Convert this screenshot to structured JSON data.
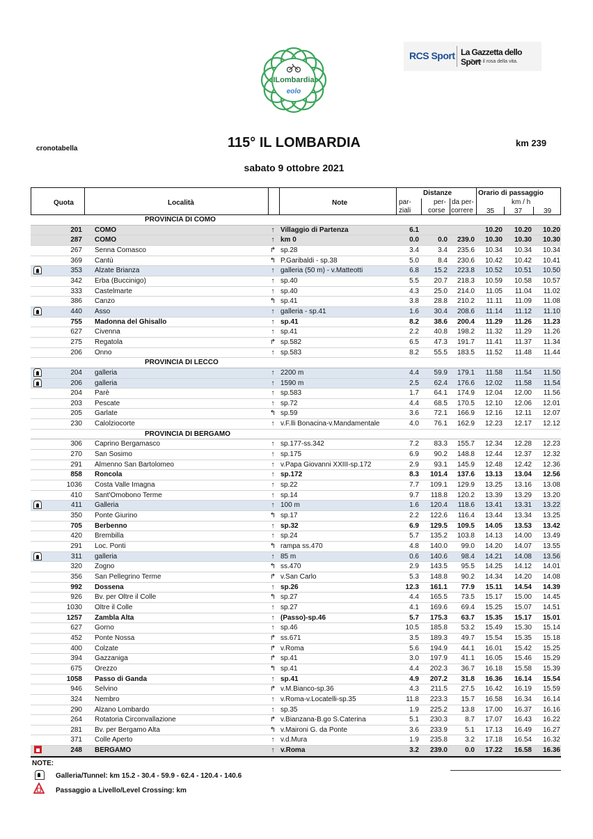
{
  "header": {
    "doc_type": "cronotabella",
    "title": "115° IL LOMBARDIA",
    "distance": "km 239",
    "date": "sabato 9 ottobre 2021",
    "logos": {
      "race": "Il Lombardia presented by eolo",
      "sponsor_left": "RCS Sport",
      "sponsor_right": "La Gazzetta dello Sport",
      "sponsor_tagline": "Tutto il rosa della vita."
    }
  },
  "colors": {
    "grey_row": "#e0e0e0",
    "tunnel_row": "#dde6f0",
    "logo_green": "#3aa55a",
    "rcs_blue": "#1d4f91",
    "finish_red": "#d0202a"
  },
  "columns": {
    "quota": "Quota",
    "localita": "Località",
    "note": "Note",
    "distanze": "Distanze",
    "parziali_1": "par-",
    "parziali_2": "ziali",
    "percorse_1": "per-",
    "percorse_2": "corse",
    "dapercorrere_1": "da per-",
    "dapercorrere_2": "correre",
    "orario": "Orario di passaggio",
    "kmh": "km / h",
    "speeds": [
      "35",
      "37",
      "39"
    ]
  },
  "rows": [
    {
      "type": "province",
      "name": "PROVINCIA DI COMO"
    },
    {
      "style": "grey",
      "quota": "201",
      "loc": "COMO",
      "dir": "straight",
      "note": "Villaggio di Partenza",
      "parz": "6.1",
      "perc": "",
      "dap": "",
      "t": [
        "10.20",
        "10.20",
        "10.20"
      ]
    },
    {
      "style": "grey",
      "quota": "287",
      "loc": "COMO",
      "dir": "straight",
      "note": "km 0",
      "parz": "0.0",
      "perc": "0.0",
      "dap": "239.0",
      "t": [
        "10.30",
        "10.30",
        "10.30"
      ]
    },
    {
      "quota": "267",
      "loc": "Senna Comasco",
      "dir": "right",
      "note": "sp.28",
      "parz": "3.4",
      "perc": "3.4",
      "dap": "235.6",
      "t": [
        "10.34",
        "10.34",
        "10.34"
      ]
    },
    {
      "quota": "369",
      "loc": "Cantù",
      "dir": "left",
      "note": "P.Garibaldi - sp.38",
      "parz": "5.0",
      "perc": "8.4",
      "dap": "230.6",
      "t": [
        "10.42",
        "10.42",
        "10.41"
      ]
    },
    {
      "style": "blue",
      "icon": "tunnel",
      "quota": "353",
      "loc": "Alzate Brianza",
      "dir": "straight",
      "note": "galleria (50 m) - v.Matteotti",
      "parz": "6.8",
      "perc": "15.2",
      "dap": "223.8",
      "t": [
        "10.52",
        "10.51",
        "10.50"
      ]
    },
    {
      "quota": "342",
      "loc": "Erba (Buccinigo)",
      "dir": "straight",
      "note": "sp.40",
      "parz": "5.5",
      "perc": "20.7",
      "dap": "218.3",
      "t": [
        "10.59",
        "10.58",
        "10.57"
      ]
    },
    {
      "quota": "333",
      "loc": "Castelmarte",
      "dir": "straight",
      "note": "sp.40",
      "parz": "4.3",
      "perc": "25.0",
      "dap": "214.0",
      "t": [
        "11.05",
        "11.04",
        "11.02"
      ]
    },
    {
      "quota": "386",
      "loc": "Canzo",
      "dir": "left",
      "note": "sp.41",
      "parz": "3.8",
      "perc": "28.8",
      "dap": "210.2",
      "t": [
        "11.11",
        "11.09",
        "11.08"
      ]
    },
    {
      "style": "blue",
      "icon": "tunnel",
      "quota": "440",
      "loc": "Asso",
      "dir": "straight",
      "note": "galleria - sp.41",
      "parz": "1.6",
      "perc": "30.4",
      "dap": "208.6",
      "t": [
        "11.14",
        "11.12",
        "11.10"
      ]
    },
    {
      "style": "bold",
      "quota": "755",
      "loc": "Madonna del Ghisallo",
      "dir": "straight",
      "note": "sp.41",
      "parz": "8.2",
      "perc": "38.6",
      "dap": "200.4",
      "t": [
        "11.29",
        "11.26",
        "11.23"
      ]
    },
    {
      "quota": "627",
      "loc": "Civenna",
      "dir": "straight",
      "note": "sp.41",
      "parz": "2.2",
      "perc": "40.8",
      "dap": "198.2",
      "t": [
        "11.32",
        "11.29",
        "11.26"
      ]
    },
    {
      "quota": "275",
      "loc": "Regatola",
      "dir": "right",
      "note": "sp.582",
      "parz": "6.5",
      "perc": "47.3",
      "dap": "191.7",
      "t": [
        "11.41",
        "11.37",
        "11.34"
      ]
    },
    {
      "quota": "206",
      "loc": "Onno",
      "dir": "straight",
      "note": "sp.583",
      "parz": "8.2",
      "perc": "55.5",
      "dap": "183.5",
      "t": [
        "11.52",
        "11.48",
        "11.44"
      ]
    },
    {
      "type": "province",
      "name": "PROVINCIA DI LECCO"
    },
    {
      "style": "blue",
      "icon": "tunnel",
      "quota": "204",
      "loc": "galleria",
      "dir": "straight",
      "note": "2200 m",
      "parz": "4.4",
      "perc": "59.9",
      "dap": "179.1",
      "t": [
        "11.58",
        "11.54",
        "11.50"
      ]
    },
    {
      "style": "blue",
      "icon": "tunnel",
      "quota": "206",
      "loc": "galleria",
      "dir": "straight",
      "note": "1590 m",
      "parz": "2.5",
      "perc": "62.4",
      "dap": "176.6",
      "t": [
        "12.02",
        "11.58",
        "11.54"
      ]
    },
    {
      "quota": "204",
      "loc": "Parè",
      "dir": "straight",
      "note": "sp.583",
      "parz": "1.7",
      "perc": "64.1",
      "dap": "174.9",
      "t": [
        "12.04",
        "12.00",
        "11.56"
      ]
    },
    {
      "quota": "203",
      "loc": "Pescate",
      "dir": "straight",
      "note": "sp.72",
      "parz": "4.4",
      "perc": "68.5",
      "dap": "170.5",
      "t": [
        "12.10",
        "12.06",
        "12.01"
      ]
    },
    {
      "quota": "205",
      "loc": "Garlate",
      "dir": "left",
      "note": "sp.59",
      "parz": "3.6",
      "perc": "72.1",
      "dap": "166.9",
      "t": [
        "12.16",
        "12.11",
        "12.07"
      ]
    },
    {
      "quota": "230",
      "loc": "Calolziocorte",
      "dir": "straight",
      "note": "v.F.lli Bonacina-v.Mandamentale",
      "parz": "4.0",
      "perc": "76.1",
      "dap": "162.9",
      "t": [
        "12.23",
        "12.17",
        "12.12"
      ]
    },
    {
      "type": "province",
      "name": "PROVINCIA DI BERGAMO"
    },
    {
      "quota": "306",
      "loc": "Caprino Bergamasco",
      "dir": "straight",
      "note": "sp.177-ss.342",
      "parz": "7.2",
      "perc": "83.3",
      "dap": "155.7",
      "t": [
        "12.34",
        "12.28",
        "12.23"
      ]
    },
    {
      "quota": "270",
      "loc": "San Sosimo",
      "dir": "straight",
      "note": "sp.175",
      "parz": "6.9",
      "perc": "90.2",
      "dap": "148.8",
      "t": [
        "12.44",
        "12.37",
        "12.32"
      ]
    },
    {
      "quota": "291",
      "loc": "Almenno San Bartolomeo",
      "dir": "straight",
      "note": "v.Papa Giovanni XXIII-sp.172",
      "parz": "2.9",
      "perc": "93.1",
      "dap": "145.9",
      "t": [
        "12.48",
        "12.42",
        "12.36"
      ]
    },
    {
      "style": "bold",
      "quota": "858",
      "loc": "Roncola",
      "dir": "straight",
      "note": "sp.172",
      "parz": "8.3",
      "perc": "101.4",
      "dap": "137.6",
      "t": [
        "13.13",
        "13.04",
        "12.56"
      ]
    },
    {
      "quota": "1036",
      "loc": "Costa Valle Imagna",
      "dir": "straight",
      "note": "sp.22",
      "parz": "7.7",
      "perc": "109.1",
      "dap": "129.9",
      "t": [
        "13.25",
        "13.16",
        "13.08"
      ]
    },
    {
      "quota": "410",
      "loc": "Sant'Omobono Terme",
      "dir": "straight",
      "note": "sp.14",
      "parz": "9.7",
      "perc": "118.8",
      "dap": "120.2",
      "t": [
        "13.39",
        "13.29",
        "13.20"
      ]
    },
    {
      "style": "blue",
      "icon": "tunnel",
      "quota": "411",
      "loc": "Galleria",
      "dir": "straight",
      "note": "100 m",
      "parz": "1.6",
      "perc": "120.4",
      "dap": "118.6",
      "t": [
        "13.41",
        "13.31",
        "13.22"
      ]
    },
    {
      "quota": "350",
      "loc": "Ponte Giurino",
      "dir": "left",
      "note": "sp.17",
      "parz": "2.2",
      "perc": "122.6",
      "dap": "116.4",
      "t": [
        "13.44",
        "13.34",
        "13.25"
      ]
    },
    {
      "style": "bold",
      "quota": "705",
      "loc": "Berbenno",
      "dir": "straight",
      "note": "sp.32",
      "parz": "6.9",
      "perc": "129.5",
      "dap": "109.5",
      "t": [
        "14.05",
        "13.53",
        "13.42"
      ]
    },
    {
      "quota": "420",
      "loc": "Brembilla",
      "dir": "straight",
      "note": "sp.24",
      "parz": "5.7",
      "perc": "135.2",
      "dap": "103.8",
      "t": [
        "14.13",
        "14.00",
        "13.49"
      ]
    },
    {
      "quota": "291",
      "loc": "Loc. Ponti",
      "dir": "left",
      "note": "rampa ss.470",
      "parz": "4.8",
      "perc": "140.0",
      "dap": "99.0",
      "t": [
        "14.20",
        "14.07",
        "13.55"
      ]
    },
    {
      "style": "blue",
      "icon": "tunnel",
      "quota": "311",
      "loc": "galleria",
      "dir": "straight",
      "note": "85 m",
      "parz": "0.6",
      "perc": "140.6",
      "dap": "98.4",
      "t": [
        "14.21",
        "14.08",
        "13.56"
      ]
    },
    {
      "quota": "320",
      "loc": "Zogno",
      "dir": "left",
      "note": "ss.470",
      "parz": "2.9",
      "perc": "143.5",
      "dap": "95.5",
      "t": [
        "14.25",
        "14.12",
        "14.01"
      ]
    },
    {
      "quota": "356",
      "loc": "San Pellegrino Terme",
      "dir": "right",
      "note": "v.San Carlo",
      "parz": "5.3",
      "perc": "148.8",
      "dap": "90.2",
      "t": [
        "14.34",
        "14.20",
        "14.08"
      ]
    },
    {
      "style": "bold",
      "quota": "992",
      "loc": "Dossena",
      "dir": "straight",
      "note": "sp.26",
      "parz": "12.3",
      "perc": "161.1",
      "dap": "77.9",
      "t": [
        "15.11",
        "14.54",
        "14.39"
      ]
    },
    {
      "quota": "926",
      "loc": "Bv. per Oltre il Colle",
      "dir": "left",
      "note": "sp.27",
      "parz": "4.4",
      "perc": "165.5",
      "dap": "73.5",
      "t": [
        "15.17",
        "15.00",
        "14.45"
      ]
    },
    {
      "quota": "1030",
      "loc": "Oltre il Colle",
      "dir": "straight",
      "note": "sp.27",
      "parz": "4.1",
      "perc": "169.6",
      "dap": "69.4",
      "t": [
        "15.25",
        "15.07",
        "14.51"
      ]
    },
    {
      "style": "bold",
      "quota": "1257",
      "loc": "Zambla Alta",
      "dir": "straight",
      "note": "(Passo)-sp.46",
      "parz": "5.7",
      "perc": "175.3",
      "dap": "63.7",
      "t": [
        "15.35",
        "15.17",
        "15.01"
      ]
    },
    {
      "quota": "627",
      "loc": "Gorno",
      "dir": "straight",
      "note": "sp.46",
      "parz": "10.5",
      "perc": "185.8",
      "dap": "53.2",
      "t": [
        "15.49",
        "15.30",
        "15.14"
      ]
    },
    {
      "quota": "452",
      "loc": "Ponte Nossa",
      "dir": "right",
      "note": "ss.671",
      "parz": "3.5",
      "perc": "189.3",
      "dap": "49.7",
      "t": [
        "15.54",
        "15.35",
        "15.18"
      ]
    },
    {
      "quota": "400",
      "loc": "Colzate",
      "dir": "right",
      "note": "v.Roma",
      "parz": "5.6",
      "perc": "194.9",
      "dap": "44.1",
      "t": [
        "16.01",
        "15.42",
        "15.25"
      ]
    },
    {
      "quota": "394",
      "loc": "Gazzaniga",
      "dir": "right",
      "note": "sp.41",
      "parz": "3.0",
      "perc": "197.9",
      "dap": "41.1",
      "t": [
        "16.05",
        "15.46",
        "15.29"
      ]
    },
    {
      "quota": "675",
      "loc": "Orezzo",
      "dir": "left",
      "note": "sp.41",
      "parz": "4.4",
      "perc": "202.3",
      "dap": "36.7",
      "t": [
        "16.18",
        "15.58",
        "15.39"
      ]
    },
    {
      "style": "bold",
      "quota": "1058",
      "loc": "Passo di Ganda",
      "dir": "straight",
      "note": "sp.41",
      "parz": "4.9",
      "perc": "207.2",
      "dap": "31.8",
      "t": [
        "16.36",
        "16.14",
        "15.54"
      ]
    },
    {
      "quota": "946",
      "loc": "Selvino",
      "dir": "right",
      "note": "v.M.Bianco-sp.36",
      "parz": "4.3",
      "perc": "211.5",
      "dap": "27.5",
      "t": [
        "16.42",
        "16.19",
        "15.59"
      ]
    },
    {
      "quota": "324",
      "loc": "Nembro",
      "dir": "straight",
      "note": "v.Roma-v.Locatelli-sp.35",
      "parz": "11.8",
      "perc": "223.3",
      "dap": "15.7",
      "t": [
        "16.58",
        "16.34",
        "16.14"
      ]
    },
    {
      "quota": "290",
      "loc": "Alzano Lombardo",
      "dir": "straight",
      "note": "sp.35",
      "parz": "1.9",
      "perc": "225.2",
      "dap": "13.8",
      "t": [
        "17.00",
        "16.37",
        "16.16"
      ]
    },
    {
      "quota": "264",
      "loc": "Rotatoria Circonvallazione",
      "dir": "right",
      "note": "v.Bianzana-B.go S.Caterina",
      "parz": "5.1",
      "perc": "230.3",
      "dap": "8.7",
      "t": [
        "17.07",
        "16.43",
        "16.22"
      ]
    },
    {
      "quota": "281",
      "loc": "Bv. per Bergamo Alta",
      "dir": "left",
      "note": "v.Maironi G. da Ponte",
      "parz": "3.6",
      "perc": "233.9",
      "dap": "5.1",
      "t": [
        "17.13",
        "16.49",
        "16.27"
      ]
    },
    {
      "quota": "371",
      "loc": "Colle Aperto",
      "dir": "straight",
      "note": "v.d.Mura",
      "parz": "1.9",
      "perc": "235.8",
      "dap": "3.2",
      "t": [
        "17.18",
        "16.54",
        "16.32"
      ]
    },
    {
      "style": "grey",
      "icon": "finish",
      "quota": "248",
      "loc": "BERGAMO",
      "dir": "straight",
      "note": "v.Roma",
      "parz": "3.2",
      "perc": "239.0",
      "dap": "0.0",
      "t": [
        "17.22",
        "16.58",
        "16.36"
      ]
    }
  ],
  "notes": {
    "title": "NOTE:",
    "tunnel": "Galleria/Tunnel:  km 15.2 - 30.4 - 59.9 - 62.4 - 120.4 - 140.6",
    "level_crossing": "Passaggio a Livello/Level Crossing:  km"
  }
}
